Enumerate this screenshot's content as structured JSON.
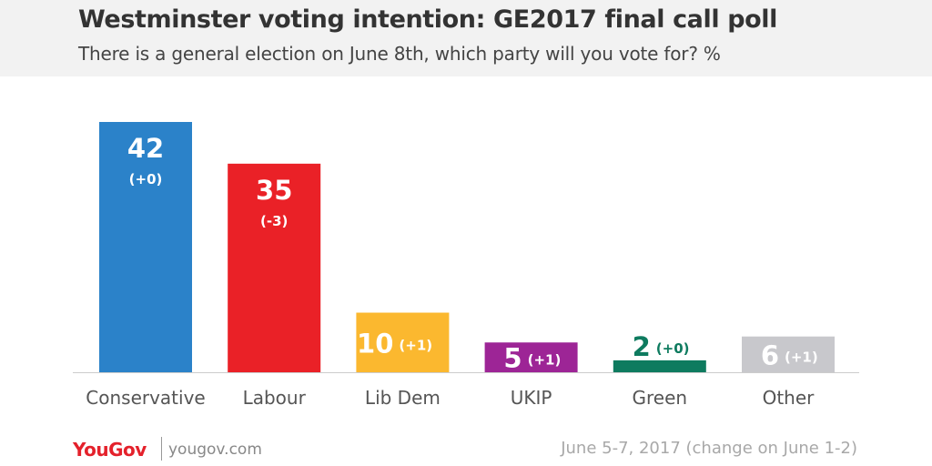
{
  "header": {
    "title": "Westminster voting intention: GE2017 final call poll",
    "subtitle": "There is a general election on June 8th, which party will you vote for? %"
  },
  "chart_data": {
    "type": "bar",
    "title": "Westminster voting intention: GE2017 final call poll",
    "subtitle": "There is a general election on June 8th, which party will you vote for? %",
    "categories": [
      "Conservative",
      "Labour",
      "Lib Dem",
      "UKIP",
      "Green",
      "Other"
    ],
    "values": [
      42,
      35,
      10,
      5,
      2,
      6
    ],
    "changes": [
      "(+0)",
      "(-3)",
      "(+1)",
      "(+1)",
      "(+0)",
      "(+1)"
    ],
    "colors": [
      "#2b82c9",
      "#ea2127",
      "#fbb82f",
      "#9d2596",
      "#0e7b5f",
      "#c8c8cc"
    ],
    "ylim": [
      0,
      42
    ],
    "grid": false,
    "legend": "none"
  },
  "footer": {
    "brand": "YouGov",
    "url": "yougov.com",
    "note": "June 5-7, 2017 (change on June 1-2)"
  }
}
